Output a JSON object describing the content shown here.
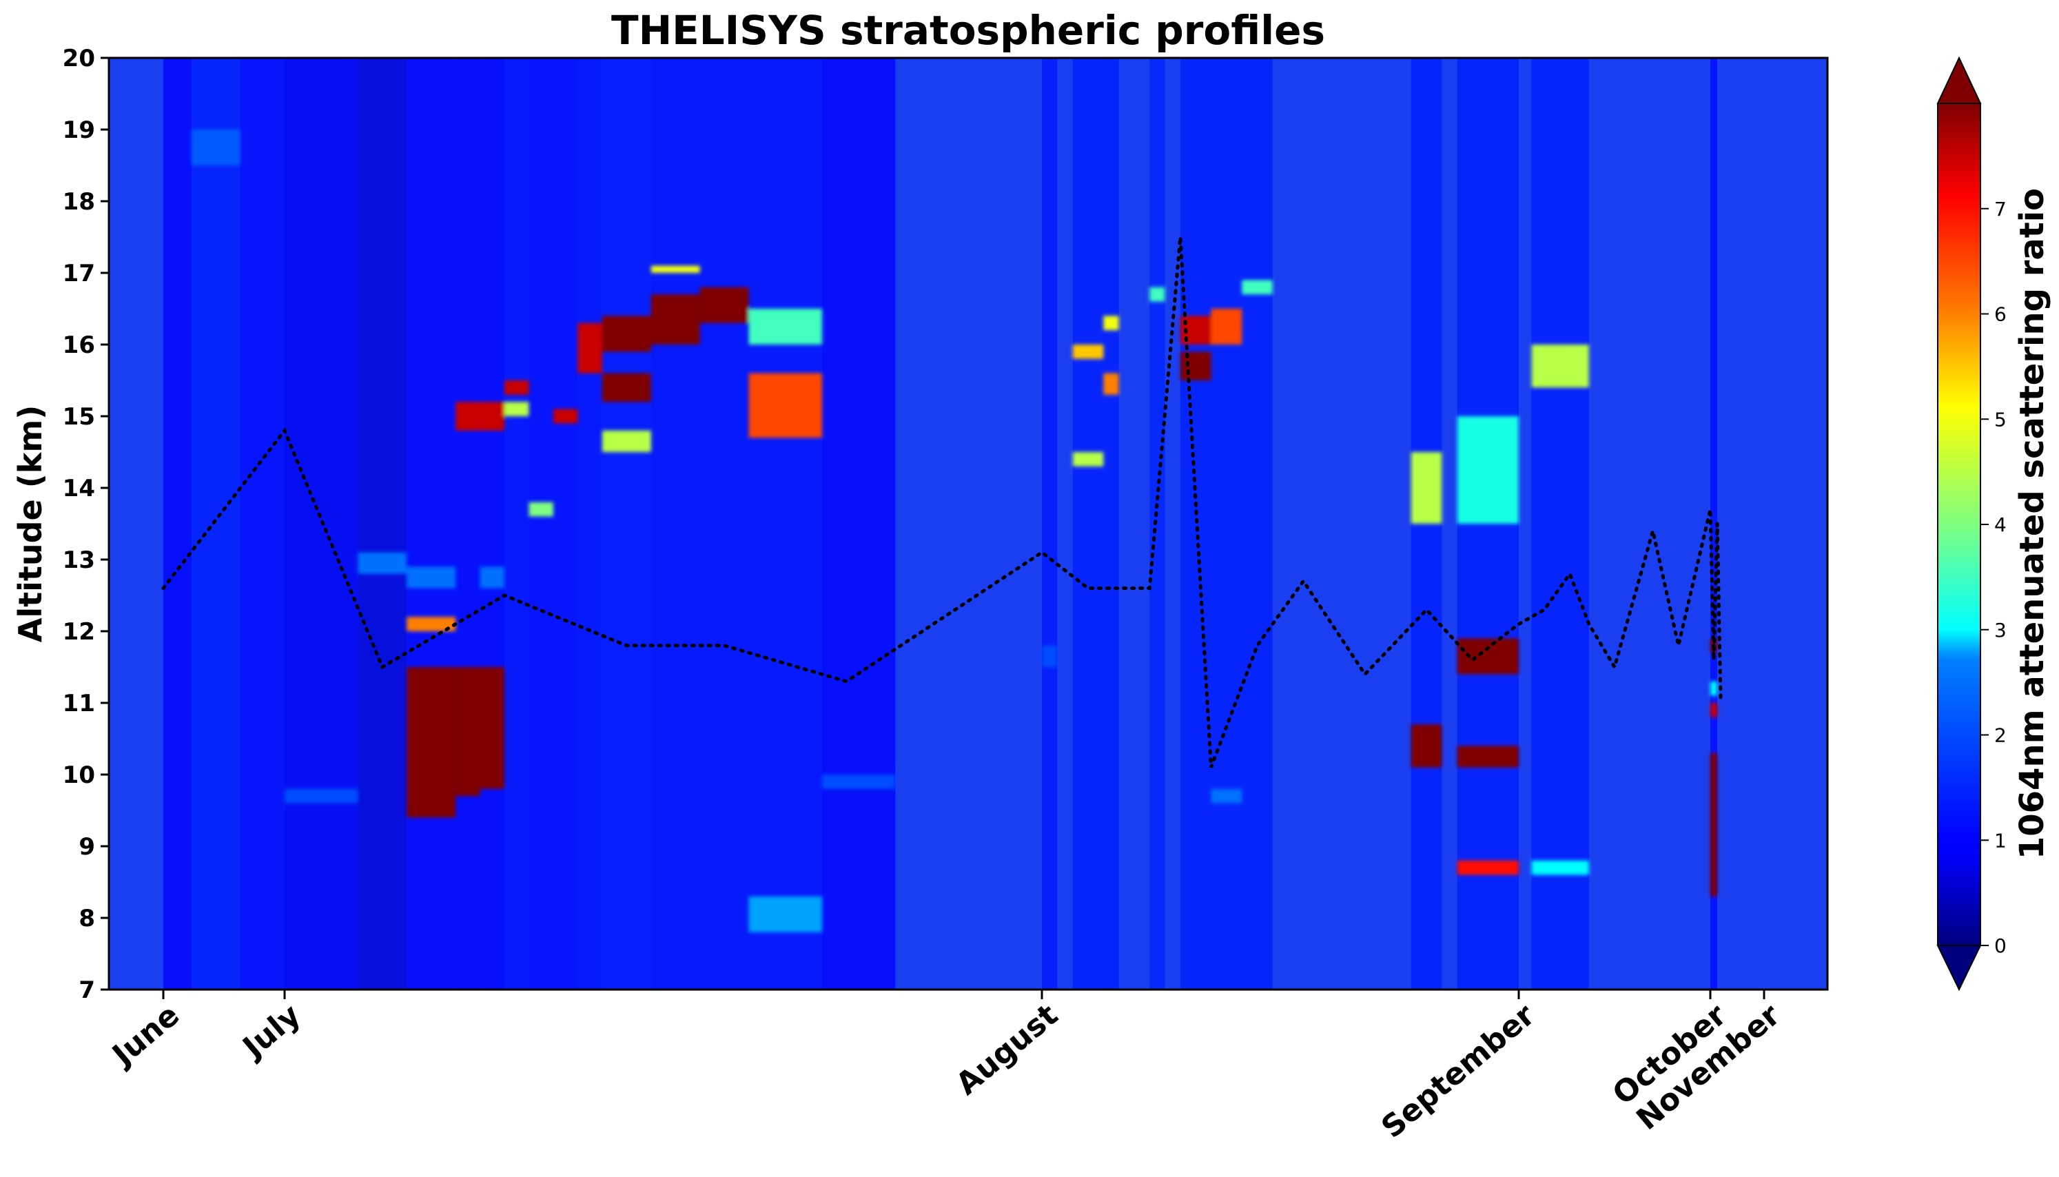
{
  "chart_data": {
    "type": "heatmap",
    "title": "THELISYS stratospheric profiles",
    "ylabel": "Altitude (km)",
    "xlabel": "",
    "ylim": [
      7,
      20
    ],
    "yticks": [
      7,
      8,
      9,
      10,
      11,
      12,
      13,
      14,
      15,
      16,
      17,
      18,
      19,
      20
    ],
    "xtick_labels": [
      "June",
      "July",
      "August",
      "September",
      "October",
      "November"
    ],
    "colorbar": {
      "label": "1064nm attenuated scattering ratio",
      "range": [
        0,
        8
      ],
      "ticks": [
        0,
        1,
        2,
        3,
        4,
        5,
        6,
        7
      ],
      "colormap": "jet",
      "extend": "both",
      "colors": [
        "#00007f",
        "#0000ff",
        "#007fff",
        "#00ffff",
        "#7fff7f",
        "#ffff00",
        "#ff7f00",
        "#ff0000",
        "#7f0000"
      ]
    },
    "background_colour": "#1a3ff0",
    "columns": [
      {
        "from": "June 1",
        "to": "June 8",
        "base": 0.9,
        "layers": []
      },
      {
        "from": "June 8",
        "to": "June 20",
        "base": 1.3,
        "layers": [
          {
            "lo": 18.5,
            "hi": 19.0,
            "sr": 2.2
          }
        ]
      },
      {
        "from": "June 20",
        "to": "July 1",
        "base": 1.0,
        "layers": []
      },
      {
        "from": "July 1",
        "to": "July 4",
        "base": 0.8,
        "layers": [
          {
            "lo": 9.6,
            "hi": 9.8,
            "sr": 2.0
          }
        ]
      },
      {
        "from": "July 4",
        "to": "July 6",
        "base": 0.6,
        "layers": [
          {
            "lo": 12.8,
            "hi": 13.1,
            "sr": 2.5
          }
        ]
      },
      {
        "from": "July 6",
        "to": "July 8",
        "base": 0.9,
        "layers": [
          {
            "lo": 9.4,
            "hi": 11.5,
            "sr": 8
          },
          {
            "lo": 12.0,
            "hi": 12.2,
            "sr": 6
          },
          {
            "lo": 12.6,
            "hi": 12.9,
            "sr": 2.5
          }
        ]
      },
      {
        "from": "July 8",
        "to": "July 9",
        "base": 0.9,
        "layers": [
          {
            "lo": 9.7,
            "hi": 11.5,
            "sr": 8
          },
          {
            "lo": 14.8,
            "hi": 15.2,
            "sr": 7.5
          }
        ]
      },
      {
        "from": "July 9",
        "to": "July 10",
        "base": 0.9,
        "layers": [
          {
            "lo": 9.8,
            "hi": 11.5,
            "sr": 8
          },
          {
            "lo": 14.8,
            "hi": 15.2,
            "sr": 7.5
          },
          {
            "lo": 12.6,
            "hi": 12.9,
            "sr": 2.5
          }
        ]
      },
      {
        "from": "July 10",
        "to": "July 11",
        "base": 1.1,
        "layers": [
          {
            "lo": 15.3,
            "hi": 15.5,
            "sr": 7.5
          },
          {
            "lo": 15.0,
            "hi": 15.2,
            "sr": 4.5
          }
        ]
      },
      {
        "from": "July 11",
        "to": "July 12",
        "base": 1.0,
        "layers": [
          {
            "lo": 13.6,
            "hi": 13.8,
            "sr": 4.0
          }
        ]
      },
      {
        "from": "July 12",
        "to": "July 13",
        "base": 1.0,
        "layers": [
          {
            "lo": 14.9,
            "hi": 15.1,
            "sr": 7.5
          }
        ]
      },
      {
        "from": "July 13",
        "to": "July 14",
        "base": 1.1,
        "layers": [
          {
            "lo": 15.6,
            "hi": 16.3,
            "sr": 7.5
          }
        ]
      },
      {
        "from": "July 14",
        "to": "July 16",
        "base": 1.2,
        "layers": [
          {
            "lo": 15.2,
            "hi": 15.6,
            "sr": 8
          },
          {
            "lo": 15.9,
            "hi": 16.4,
            "sr": 8
          },
          {
            "lo": 14.5,
            "hi": 14.8,
            "sr": 4.5
          }
        ]
      },
      {
        "from": "July 16",
        "to": "July 18",
        "base": 1.1,
        "layers": [
          {
            "lo": 16.0,
            "hi": 16.7,
            "sr": 8
          },
          {
            "lo": 17.0,
            "hi": 17.1,
            "sr": 5
          }
        ]
      },
      {
        "from": "July 18",
        "to": "July 20",
        "base": 1.1,
        "layers": [
          {
            "lo": 16.3,
            "hi": 16.8,
            "sr": 8
          }
        ]
      },
      {
        "from": "July 20",
        "to": "July 23",
        "base": 1.1,
        "layers": [
          {
            "lo": 14.7,
            "hi": 15.6,
            "sr": 6.5
          },
          {
            "lo": 16.0,
            "hi": 16.5,
            "sr": 3.5
          },
          {
            "lo": 7.8,
            "hi": 8.3,
            "sr": 2.8
          }
        ]
      },
      {
        "from": "July 23",
        "to": "July 26",
        "base": 0.9,
        "layers": [
          {
            "lo": 9.8,
            "hi": 10.0,
            "sr": 2.0
          }
        ]
      },
      {
        "from": "August 1",
        "to": "August 2",
        "base": 1.2,
        "layers": [
          {
            "lo": 11.5,
            "hi": 11.8,
            "sr": 2.0
          }
        ]
      },
      {
        "from": "August 3",
        "to": "August 5",
        "base": 1.3,
        "layers": [
          {
            "lo": 15.8,
            "hi": 16.0,
            "sr": 5.5
          },
          {
            "lo": 14.3,
            "hi": 14.5,
            "sr": 4.5
          }
        ]
      },
      {
        "from": "August 5",
        "to": "August 6",
        "base": 1.3,
        "layers": [
          {
            "lo": 15.3,
            "hi": 15.6,
            "sr": 6.0
          },
          {
            "lo": 16.2,
            "hi": 16.4,
            "sr": 5.0
          }
        ]
      },
      {
        "from": "August 8",
        "to": "August 9",
        "base": 1.4,
        "layers": [
          {
            "lo": 16.6,
            "hi": 16.8,
            "sr": 3.5
          }
        ]
      },
      {
        "from": "August 10",
        "to": "August 12",
        "base": 1.3,
        "layers": [
          {
            "lo": 15.5,
            "hi": 15.9,
            "sr": 8
          },
          {
            "lo": 16.0,
            "hi": 16.4,
            "sr": 7.5
          }
        ]
      },
      {
        "from": "August 12",
        "to": "August 14",
        "base": 1.3,
        "layers": [
          {
            "lo": 16.0,
            "hi": 16.5,
            "sr": 6.5
          },
          {
            "lo": 9.6,
            "hi": 9.8,
            "sr": 2.5
          }
        ]
      },
      {
        "from": "August 14",
        "to": "August 16",
        "base": 1.3,
        "layers": [
          {
            "lo": 16.7,
            "hi": 16.9,
            "sr": 3.5
          }
        ]
      },
      {
        "from": "August 25",
        "to": "August 27",
        "base": 1.3,
        "layers": [
          {
            "lo": 13.5,
            "hi": 14.5,
            "sr": 4.5
          },
          {
            "lo": 10.1,
            "hi": 10.7,
            "sr": 8
          }
        ]
      },
      {
        "from": "August 28",
        "to": "September 1",
        "base": 1.3,
        "layers": [
          {
            "lo": 11.4,
            "hi": 11.9,
            "sr": 8
          },
          {
            "lo": 10.1,
            "hi": 10.4,
            "sr": 8
          },
          {
            "lo": 8.6,
            "hi": 8.8,
            "sr": 7
          },
          {
            "lo": 13.5,
            "hi": 15.0,
            "sr": 3.2
          }
        ]
      },
      {
        "from": "September 3",
        "to": "September 12",
        "base": 1.3,
        "layers": [
          {
            "lo": 15.4,
            "hi": 16.0,
            "sr": 4.5
          },
          {
            "lo": 8.6,
            "hi": 8.8,
            "sr": 3.0
          }
        ]
      },
      {
        "from": "October 1",
        "to": "October 5",
        "base": 1.0,
        "layers": [
          {
            "lo": 8.3,
            "hi": 10.3,
            "sr": 8
          },
          {
            "lo": 11.7,
            "hi": 11.9,
            "sr": 8
          },
          {
            "lo": 10.8,
            "hi": 11.0,
            "sr": 7.5
          },
          {
            "lo": 11.1,
            "hi": 11.3,
            "sr": 3.0
          }
        ]
      }
    ],
    "tropopause_line": {
      "style": "dotted",
      "color": "#000000",
      "x": [
        "June 1",
        "July 1",
        "July 5",
        "July 10",
        "July 15",
        "July 19",
        "July 24",
        "August 1",
        "August 4",
        "August 8",
        "August 10",
        "August 12",
        "August 15",
        "August 18",
        "August 22",
        "August 26",
        "August 29",
        "September 1",
        "September 5",
        "September 9",
        "September 12",
        "September 16",
        "September 22",
        "September 26",
        "October 1",
        "October 3",
        "October 5",
        "October 7"
      ],
      "y": [
        12.6,
        14.8,
        11.5,
        12.5,
        11.8,
        11.8,
        11.3,
        13.1,
        12.6,
        12.6,
        17.5,
        10.1,
        11.8,
        12.7,
        11.4,
        12.3,
        11.6,
        12.1,
        12.3,
        12.8,
        12.1,
        11.5,
        13.4,
        11.8,
        13.7,
        11.6,
        13.5,
        11.0
      ]
    }
  }
}
